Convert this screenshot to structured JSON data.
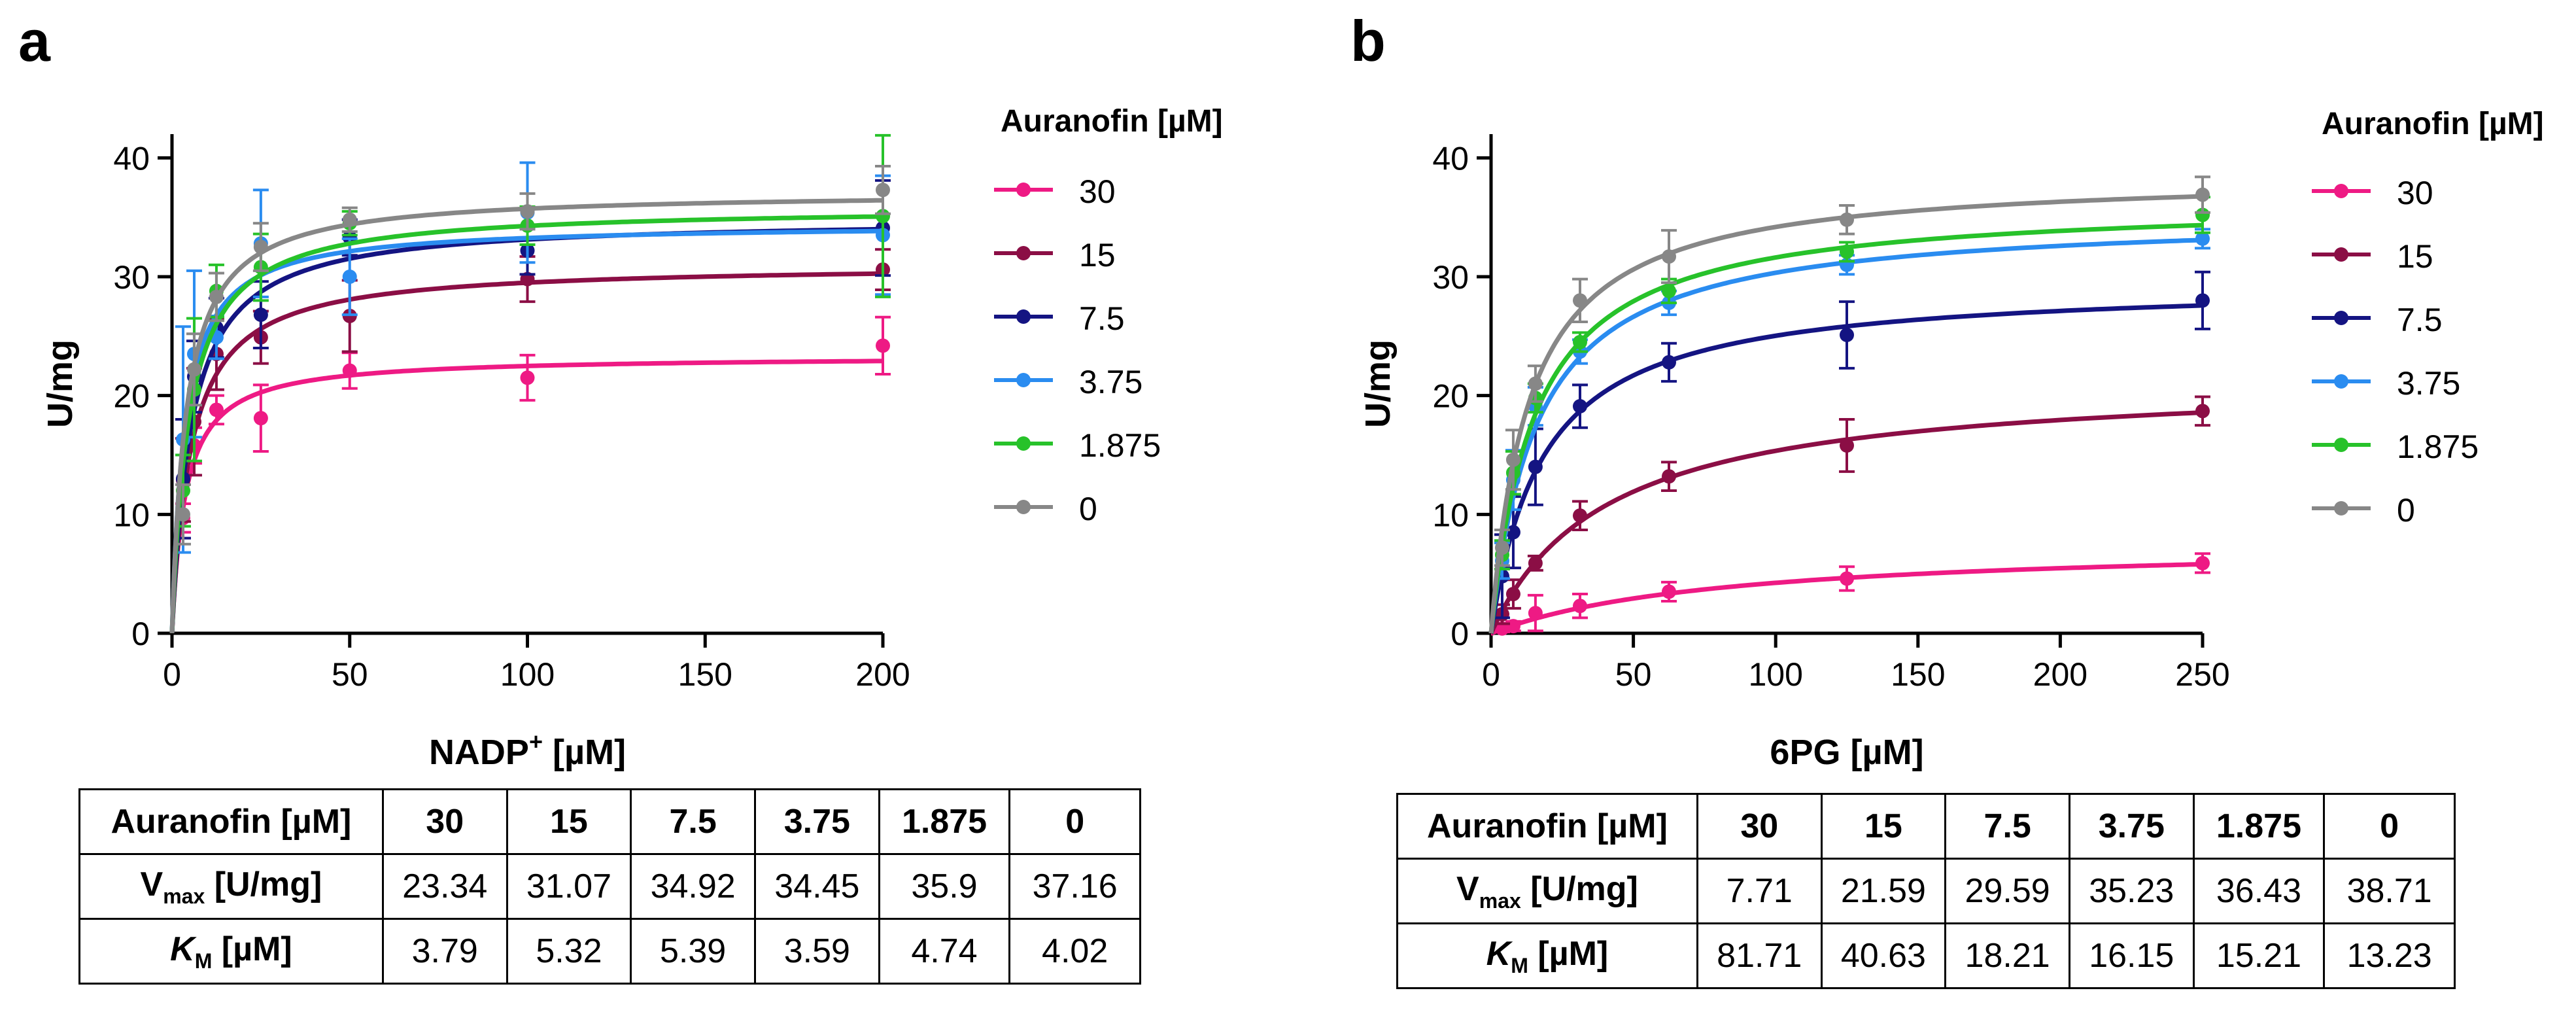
{
  "panels": [
    {
      "letter": "a",
      "chart_data": {
        "type": "scatter",
        "subtype": "michaelis-menten fits with error bars",
        "xlabel": "NADP",
        "xlabel_sup": "+",
        "xlabel_unit": " [µM]",
        "ylabel": "U/mg",
        "xlim": [
          0,
          200
        ],
        "ylim": [
          0,
          42
        ],
        "xticks": [
          0,
          50,
          100,
          150,
          200
        ],
        "yticks": [
          0,
          10,
          20,
          30,
          40
        ],
        "grid": false,
        "legend_title": "Auranofin [µM]",
        "legend_position": "right",
        "series": [
          {
            "name": "30",
            "color": "#ee1a84",
            "vmax": 23.34,
            "km": 3.79,
            "points": [
              [
                3.125,
                9.7,
                1.2
              ],
              [
                6.25,
                15.8,
                1.5
              ],
              [
                12.5,
                18.8,
                1.2
              ],
              [
                25,
                18.1,
                2.8
              ],
              [
                50,
                22.1,
                1.5
              ],
              [
                100,
                21.5,
                1.9
              ],
              [
                200,
                24.2,
                2.4
              ]
            ]
          },
          {
            "name": "15",
            "color": "#8b0e45",
            "vmax": 31.07,
            "km": 5.32,
            "points": [
              [
                3.125,
                12.9,
                3.5
              ],
              [
                6.25,
                17.8,
                4.5
              ],
              [
                12.5,
                23.5,
                3.0
              ],
              [
                25,
                24.9,
                2.2
              ],
              [
                50,
                26.7,
                3.0
              ],
              [
                100,
                29.8,
                1.9
              ],
              [
                200,
                30.6,
                1.7
              ]
            ]
          },
          {
            "name": "7.5",
            "color": "#141482",
            "vmax": 34.92,
            "km": 5.39,
            "points": [
              [
                3.125,
                13.0,
                5.0
              ],
              [
                6.25,
                21.6,
                3.0
              ],
              [
                12.5,
                25.7,
                2.5
              ],
              [
                25,
                26.8,
                2.8
              ],
              [
                50,
                33.3,
                1.5
              ],
              [
                100,
                32.2,
                2.0
              ],
              [
                200,
                34.1,
                4.0
              ]
            ]
          },
          {
            "name": "3.75",
            "color": "#2a8cf0",
            "vmax": 34.45,
            "km": 3.59,
            "points": [
              [
                3.125,
                16.3,
                9.5
              ],
              [
                6.25,
                23.5,
                7.0
              ],
              [
                12.5,
                24.9,
                1.8
              ],
              [
                25,
                32.8,
                4.5
              ],
              [
                50,
                30.0,
                3.2
              ],
              [
                100,
                35.4,
                4.2
              ],
              [
                200,
                33.5,
                5.0
              ]
            ]
          },
          {
            "name": "1.875",
            "color": "#27c22a",
            "vmax": 35.9,
            "km": 4.74,
            "points": [
              [
                3.125,
                12.0,
                3.0
              ],
              [
                6.25,
                20.5,
                6.0
              ],
              [
                12.5,
                28.8,
                2.2
              ],
              [
                25,
                30.8,
                2.8
              ],
              [
                50,
                34.5,
                1.0
              ],
              [
                100,
                34.3,
                1.6
              ],
              [
                200,
                35.1,
                6.8
              ]
            ]
          },
          {
            "name": "0",
            "color": "#878787",
            "vmax": 37.16,
            "km": 4.02,
            "points": [
              [
                3.125,
                10.0,
                2.5
              ],
              [
                6.25,
                22.2,
                3.0
              ],
              [
                12.5,
                28.3,
                2.0
              ],
              [
                25,
                32.5,
                2.0
              ],
              [
                50,
                34.8,
                1.0
              ],
              [
                100,
                35.5,
                1.5
              ],
              [
                200,
                37.3,
                2.0
              ]
            ]
          }
        ]
      },
      "table": {
        "header_label": "Auranofin [µM]",
        "concentrations": [
          "30",
          "15",
          "7.5",
          "3.75",
          "1.875",
          "0"
        ],
        "vmax_label_main": "V",
        "vmax_label_sub": "max",
        "vmax_label_unit": " [U/mg]",
        "vmax": [
          "23.34",
          "31.07",
          "34.92",
          "34.45",
          "35.9",
          "37.16"
        ],
        "km_label_main": "K",
        "km_label_sub": "M",
        "km_label_unit": " [µM]",
        "km": [
          "3.79",
          "5.32",
          "5.39",
          "3.59",
          "4.74",
          "4.02"
        ]
      }
    },
    {
      "letter": "b",
      "chart_data": {
        "type": "scatter",
        "subtype": "michaelis-menten fits with error bars",
        "xlabel": "6PG",
        "xlabel_sup": "",
        "xlabel_unit": "  [µM]",
        "ylabel": "U/mg",
        "xlim": [
          0,
          250
        ],
        "ylim": [
          0,
          42
        ],
        "xticks": [
          0,
          50,
          100,
          150,
          200,
          250
        ],
        "yticks": [
          0,
          10,
          20,
          30,
          40
        ],
        "grid": false,
        "legend_title": "Auranofin [µM]",
        "legend_position": "right",
        "series": [
          {
            "name": "30",
            "color": "#ee1a84",
            "vmax": 7.71,
            "km": 81.71,
            "points": [
              [
                3.9,
                0.4,
                0.3
              ],
              [
                7.8,
                0.6,
                0.4
              ],
              [
                15.6,
                1.7,
                1.5
              ],
              [
                31.25,
                2.3,
                1.0
              ],
              [
                62.5,
                3.5,
                0.8
              ],
              [
                125,
                4.6,
                1.0
              ],
              [
                250,
                5.9,
                0.8
              ]
            ]
          },
          {
            "name": "15",
            "color": "#8b0e45",
            "vmax": 21.59,
            "km": 40.63,
            "points": [
              [
                3.9,
                1.6,
                0.8
              ],
              [
                7.8,
                3.3,
                1.2
              ],
              [
                15.6,
                5.9,
                0.6
              ],
              [
                31.25,
                9.9,
                1.2
              ],
              [
                62.5,
                13.2,
                1.2
              ],
              [
                125,
                15.8,
                2.2
              ],
              [
                250,
                18.7,
                1.2
              ]
            ]
          },
          {
            "name": "7.5",
            "color": "#141482",
            "vmax": 29.59,
            "km": 18.21,
            "points": [
              [
                3.9,
                4.8,
                3.5
              ],
              [
                7.8,
                8.5,
                3.0
              ],
              [
                15.6,
                14.0,
                3.2
              ],
              [
                31.25,
                19.1,
                1.8
              ],
              [
                62.5,
                22.8,
                1.6
              ],
              [
                125,
                25.1,
                2.8
              ],
              [
                250,
                28.0,
                2.4
              ]
            ]
          },
          {
            "name": "3.75",
            "color": "#2a8cf0",
            "vmax": 35.23,
            "km": 16.15,
            "points": [
              [
                3.9,
                6.1,
                1.5
              ],
              [
                7.8,
                12.9,
                2.5
              ],
              [
                15.6,
                19.1,
                1.6
              ],
              [
                31.25,
                23.7,
                1.0
              ],
              [
                62.5,
                27.8,
                1.0
              ],
              [
                125,
                31.0,
                0.8
              ],
              [
                250,
                33.2,
                0.8
              ]
            ]
          },
          {
            "name": "1.875",
            "color": "#27c22a",
            "vmax": 36.43,
            "km": 15.21,
            "points": [
              [
                3.9,
                6.6,
                1.2
              ],
              [
                7.8,
                13.5,
                1.8
              ],
              [
                15.6,
                19.8,
                1.2
              ],
              [
                31.25,
                24.5,
                0.8
              ],
              [
                62.5,
                28.8,
                1.0
              ],
              [
                125,
                32.1,
                0.8
              ],
              [
                250,
                35.2,
                1.5
              ]
            ]
          },
          {
            "name": "0",
            "color": "#878787",
            "vmax": 38.71,
            "km": 13.23,
            "points": [
              [
                3.9,
                7.2,
                1.5
              ],
              [
                7.8,
                14.6,
                2.5
              ],
              [
                15.6,
                21.0,
                1.5
              ],
              [
                31.25,
                28.0,
                1.8
              ],
              [
                62.5,
                31.7,
                2.2
              ],
              [
                125,
                34.8,
                1.2
              ],
              [
                250,
                36.9,
                1.5
              ]
            ]
          }
        ]
      },
      "table": {
        "header_label": "Auranofin [µM]",
        "concentrations": [
          "30",
          "15",
          "7.5",
          "3.75",
          "1.875",
          "0"
        ],
        "vmax_label_main": "V",
        "vmax_label_sub": "max",
        "vmax_label_unit": " [U/mg]",
        "vmax": [
          "7.71",
          "21.59",
          "29.59",
          "35.23",
          "36.43",
          "38.71"
        ],
        "km_label_main": "K",
        "km_label_sub": "M",
        "km_label_unit": " [µM]",
        "km": [
          "81.71",
          "40.63",
          "18.21",
          "16.15",
          "15.21",
          "13.23"
        ]
      }
    }
  ]
}
